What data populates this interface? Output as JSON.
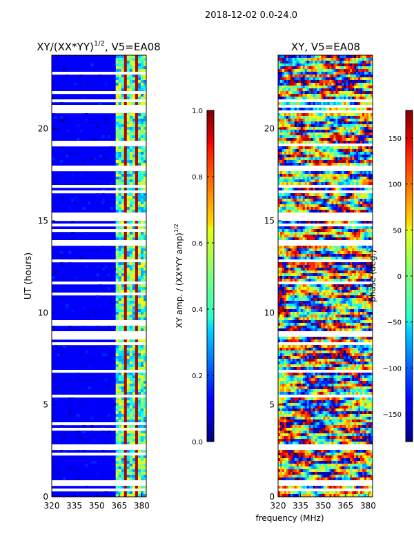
{
  "suptitle": "2018-12-02 0.0-24.0",
  "xlabel": "frequency (MHz)",
  "chart_data": [
    {
      "type": "heatmap",
      "title_main": "XY/(XX*YY)",
      "title_sup": "1/2",
      "title_tail": ", V5=EA08",
      "ylabel": "UT (hours)",
      "xlim": [
        320,
        383
      ],
      "ylim": [
        0,
        24
      ],
      "xticks": [
        320,
        335,
        350,
        365,
        380
      ],
      "yticks": [
        0,
        5,
        10,
        15,
        20
      ],
      "colorbar": {
        "label_main": "XY amp. / (XX*YY amp)",
        "label_sup": "1/2",
        "range": [
          0.0,
          1.0
        ],
        "ticks": [
          "0.0",
          "0.2",
          "0.4",
          "0.6",
          "0.8",
          "1.0"
        ],
        "colormap": "jet"
      },
      "description_values": {
        "background_level": 0.12,
        "high_freq_band_MHz": [
          363,
          383
        ],
        "high_freq_level": 0.45
      }
    },
    {
      "type": "heatmap",
      "title": "XY, V5=EA08",
      "xlim": [
        320,
        383
      ],
      "ylim": [
        0,
        24
      ],
      "xticks": [
        320,
        335,
        350,
        365,
        380
      ],
      "yticks": [
        0,
        5,
        10,
        15,
        20
      ],
      "colorbar": {
        "label": "phase (deg.)",
        "range": [
          -180,
          180
        ],
        "ticks": [
          "150",
          "100",
          "50",
          "0",
          "−50",
          "−100",
          "−150"
        ],
        "colormap": "jet"
      }
    }
  ],
  "colors": {
    "jet_dark_blue": "#00008f",
    "jet_red": "#800000",
    "axis": "#000000"
  }
}
